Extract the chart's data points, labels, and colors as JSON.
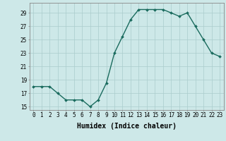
{
  "x": [
    0,
    1,
    2,
    3,
    4,
    5,
    6,
    7,
    8,
    9,
    10,
    11,
    12,
    13,
    14,
    15,
    16,
    17,
    18,
    19,
    20,
    21,
    22,
    23
  ],
  "y": [
    18,
    18,
    18,
    17,
    16,
    16,
    16,
    15,
    16,
    18.5,
    23,
    25.5,
    28,
    29.5,
    29.5,
    29.5,
    29.5,
    29,
    28.5,
    29,
    27,
    25,
    23,
    22.5
  ],
  "line_color": "#1a6b5e",
  "marker": "D",
  "marker_size": 2.0,
  "line_width": 1.0,
  "xlabel": "Humidex (Indice chaleur)",
  "xlabel_fontsize": 7,
  "xlim": [
    -0.5,
    23.5
  ],
  "ylim": [
    14.5,
    30.5
  ],
  "yticks": [
    15,
    17,
    19,
    21,
    23,
    25,
    27,
    29
  ],
  "xticks": [
    0,
    1,
    2,
    3,
    4,
    5,
    6,
    7,
    8,
    9,
    10,
    11,
    12,
    13,
    14,
    15,
    16,
    17,
    18,
    19,
    20,
    21,
    22,
    23
  ],
  "background_color": "#cde8e8",
  "grid_color": "#aacccc",
  "tick_fontsize": 5.5,
  "spine_color": "#888888"
}
